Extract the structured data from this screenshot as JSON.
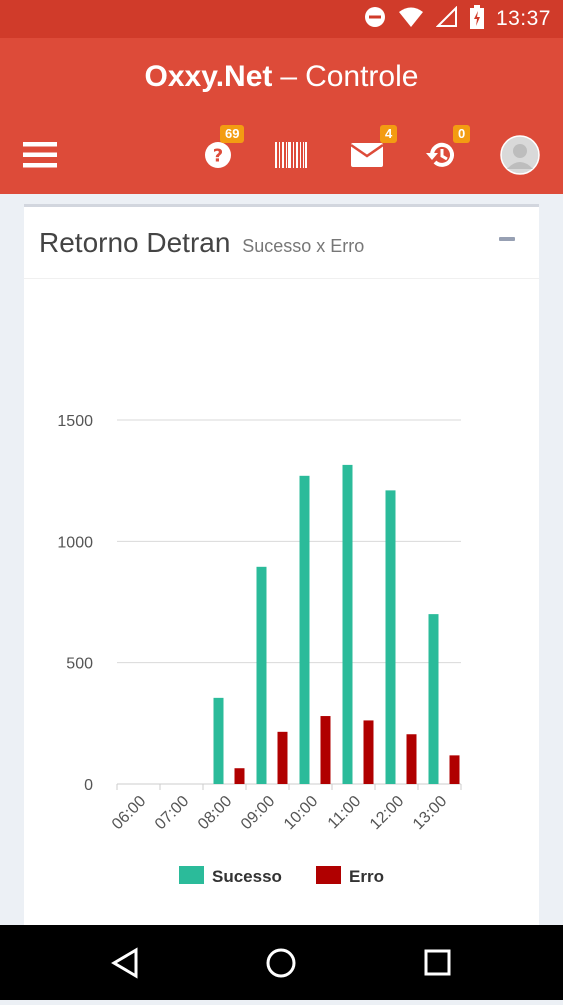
{
  "status_bar": {
    "time": "13:37",
    "icons": [
      "do-not-disturb-icon",
      "wifi-icon",
      "signal-icon",
      "battery-charging-icon"
    ]
  },
  "app": {
    "brand": "Oxxy.Net",
    "separator": "–",
    "subtitle": "Controle"
  },
  "navbar": {
    "menu_icon": "hamburger-menu-icon",
    "help_badge": "69",
    "mail_badge": "4",
    "history_badge": "0",
    "icons": [
      "help-icon",
      "barcode-icon",
      "mail-icon",
      "history-icon",
      "avatar"
    ]
  },
  "card": {
    "title": "Retorno Detran",
    "subtitle": "Sucesso x Erro"
  },
  "colors": {
    "header": "#dd4b39",
    "statusbar": "#d03b2a",
    "success": "#2bbb9a",
    "error": "#b00000",
    "badge": "#f39c12"
  },
  "chart_data": {
    "type": "bar",
    "categories": [
      "06:00",
      "07:00",
      "08:00",
      "09:00",
      "10:00",
      "11:00",
      "12:00",
      "13:00"
    ],
    "series": [
      {
        "name": "Sucesso",
        "color": "#2bbb9a",
        "values": [
          0,
          0,
          355,
          895,
          1270,
          1315,
          1210,
          700
        ]
      },
      {
        "name": "Erro",
        "color": "#b00000",
        "values": [
          0,
          0,
          65,
          215,
          280,
          262,
          205,
          118
        ]
      }
    ],
    "yticks": [
      0,
      500,
      1000,
      1500
    ],
    "ylim": [
      0,
      1500
    ],
    "legend_position": "bottom",
    "grid": true
  }
}
